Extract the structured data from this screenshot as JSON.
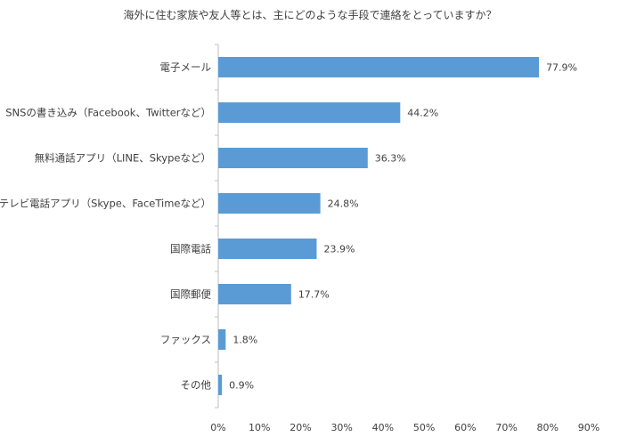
{
  "chart_data": {
    "type": "bar",
    "orientation": "horizontal",
    "title": "海外に住む家族や友人等とは、主にどのような手段で連絡をとっていますか？",
    "categories": [
      "電子メール",
      "SNSの書き込み（Facebook、Twitterなど）",
      "無料通話アプリ（LINE、Skypeなど）",
      "テレビ電話アプリ（Skype、FaceTimeなど）",
      "国際電話",
      "国際郵便",
      "ファックス",
      "その他"
    ],
    "values": [
      77.9,
      44.2,
      36.3,
      24.8,
      23.9,
      17.7,
      1.8,
      0.9
    ],
    "value_labels": [
      "77.9%",
      "44.2%",
      "36.3%",
      "24.8%",
      "23.9%",
      "17.7%",
      "1.8%",
      "0.9%"
    ],
    "x_ticks": [
      "0%",
      "10%",
      "20%",
      "30%",
      "40%",
      "50%",
      "60%",
      "70%",
      "80%",
      "90%"
    ],
    "xlim": [
      0,
      90
    ],
    "xlabel": "",
    "ylabel": "",
    "grid": false,
    "legend": "none",
    "bar_color": "#5b9bd5",
    "axis_color": "#bfbfbf"
  }
}
